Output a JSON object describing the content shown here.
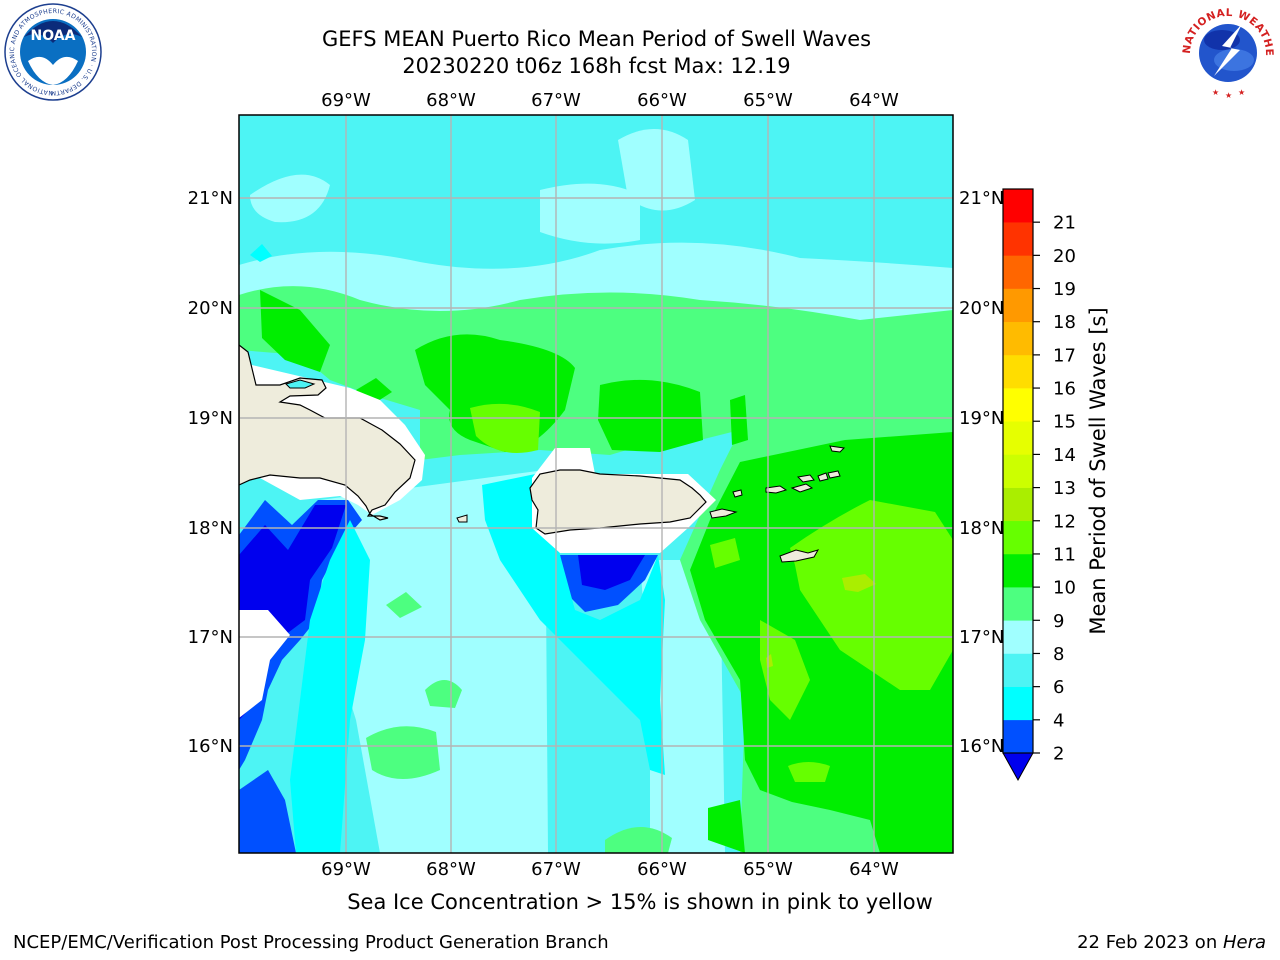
{
  "header": {
    "title_line1": "GEFS MEAN Puerto Rico Mean Period of Swell Waves",
    "title_line2": "20230220 t06z 168h fcst   Max: 12.19"
  },
  "logos": {
    "left": "NOAA",
    "left_ring": "NATIONAL OCEANIC AND ATMOSPHERIC ADMINISTRATION · U.S. DEPARTMENT OF COMMERCE",
    "right_ring": "NATIONAL WEATHER SERVICE"
  },
  "map": {
    "lon_labels": [
      "69°W",
      "68°W",
      "67°W",
      "66°W",
      "65°W",
      "64°W"
    ],
    "lat_labels": [
      "21°N",
      "20°N",
      "19°N",
      "18°N",
      "17°N",
      "16°N"
    ]
  },
  "colorbar": {
    "label": "Mean Period of Swell Waves [s]",
    "ticks": [
      "2",
      "4",
      "6",
      "8",
      "9",
      "10",
      "11",
      "12",
      "13",
      "14",
      "15",
      "16",
      "17",
      "18",
      "19",
      "20",
      "21"
    ],
    "colors": [
      "#0050ff",
      "#00ffff",
      "#4df4f4",
      "#a0ffff",
      "#4dff80",
      "#00ee00",
      "#66ff00",
      "#aaee00",
      "#ccff00",
      "#e6ff00",
      "#ffff00",
      "#ffdd00",
      "#ffbb00",
      "#ff9900",
      "#ff6600",
      "#ff3300",
      "#ff0000"
    ],
    "under_color": "#0000ee"
  },
  "colors": {
    "land": "#eeecdc",
    "grid": "#b4b4b4",
    "deep_blue": "#0000ee"
  },
  "caption": "Sea Ice Concentration > 15% is shown in pink to yellow",
  "footer": {
    "left": "NCEP/EMC/Verification Post Processing Product Generation Branch",
    "right_prefix": "22 Feb 2023 on ",
    "right_machine": "Hera"
  }
}
